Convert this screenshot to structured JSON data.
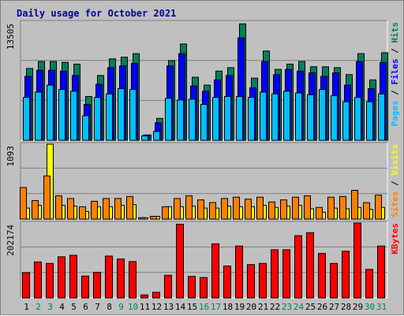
{
  "chart_data": {
    "type": "bar",
    "title": "Daily usage for October 2021",
    "colors": {
      "title": "#0000a0",
      "hits": "#00805c",
      "files": "#0000ff",
      "pages": "#00c0ff",
      "visits": "#ffff00",
      "sites": "#ff8000",
      "kbytes": "#ff0000",
      "background": "#c0c0c0",
      "weekday_label": "#000000",
      "weekend_label": "#00805c"
    },
    "x": [
      "1",
      "2",
      "3",
      "4",
      "5",
      "6",
      "7",
      "8",
      "9",
      "10",
      "11",
      "12",
      "13",
      "14",
      "15",
      "16",
      "17",
      "18",
      "19",
      "20",
      "21",
      "22",
      "23",
      "24",
      "25",
      "26",
      "27",
      "28",
      "29",
      "30",
      "31"
    ],
    "weekend_days": [
      "2",
      "3",
      "9",
      "10",
      "16",
      "17",
      "23",
      "24",
      "30",
      "31"
    ],
    "panels": [
      {
        "id": "hits-files-pages",
        "ymax_label": "13505",
        "ymax": 13505,
        "legend": [
          {
            "text": "Pages",
            "color_key": "pages"
          },
          {
            "text": " / ",
            "color_key": "weekday_label"
          },
          {
            "text": "Files",
            "color_key": "files"
          },
          {
            "text": " / ",
            "color_key": "weekday_label"
          },
          {
            "text": "Hits",
            "color_key": "hits"
          }
        ],
        "series": [
          {
            "name": "Hits",
            "color_key": "hits",
            "values": [
              8200,
              9000,
              9000,
              8900,
              8700,
              5000,
              7400,
              9300,
              9500,
              9900,
              600,
              2500,
              9100,
              11000,
              7200,
              6300,
              7900,
              8300,
              13300,
              7100,
              10200,
              8100,
              8700,
              9000,
              8400,
              8400,
              8300,
              7500,
              9900,
              6900,
              10000
            ]
          },
          {
            "name": "Files",
            "color_key": "files",
            "values": [
              7300,
              8000,
              8000,
              7900,
              7400,
              4100,
              6400,
              8300,
              8500,
              8800,
              600,
              2000,
              8500,
              9900,
              6200,
              5600,
              6900,
              7400,
              11700,
              6000,
              9000,
              7500,
              8100,
              7900,
              7700,
              7300,
              7700,
              6300,
              9000,
              5900,
              8900
            ]
          },
          {
            "name": "Pages",
            "color_key": "pages",
            "values": [
              4900,
              5500,
              6300,
              5800,
              5600,
              2800,
              4900,
              5300,
              5900,
              5800,
              500,
              1000,
              4800,
              4600,
              4700,
              4100,
              4900,
              5000,
              5000,
              4900,
              5500,
              5300,
              5600,
              5400,
              5200,
              5800,
              5100,
              4400,
              4900,
              4400,
              5300
            ]
          }
        ]
      },
      {
        "id": "sites-visits",
        "ymax_label": "1093",
        "ymax": 1093,
        "legend": [
          {
            "text": "Sites",
            "color_key": "sites"
          },
          {
            "text": " / ",
            "color_key": "weekday_label"
          },
          {
            "text": "Visits",
            "color_key": "visits"
          }
        ],
        "series": [
          {
            "name": "Visits",
            "color_key": "visits",
            "values": [
              160,
              200,
              1093,
              200,
              190,
              110,
              180,
              180,
              200,
              210,
              20,
              40,
              180,
              180,
              190,
              160,
              160,
              190,
              180,
              180,
              200,
              170,
              190,
              200,
              150,
              100,
              160,
              150,
              170,
              140,
              170
            ]
          },
          {
            "name": "Sites",
            "color_key": "sites",
            "values": [
              460,
              270,
              630,
              340,
              300,
              180,
              260,
              300,
              300,
              330,
              20,
              40,
              180,
              300,
              340,
              280,
              240,
              300,
              320,
              290,
              320,
              250,
              280,
              320,
              340,
              170,
              320,
              330,
              420,
              240,
              350
            ]
          }
        ]
      },
      {
        "id": "kbytes",
        "ymax_label": "202174",
        "ymax": 202174,
        "legend": [
          {
            "text": "KBytes",
            "color_key": "kbytes"
          }
        ],
        "series": [
          {
            "name": "KBytes",
            "color_key": "kbytes",
            "values": [
              68000,
              97000,
              93000,
              111000,
              115000,
              59000,
              69000,
              113000,
              105000,
              98000,
              8000,
              15000,
              61000,
              199000,
              58000,
              55000,
              146000,
              86000,
              140000,
              90000,
              93000,
              130000,
              130000,
              168000,
              176000,
              120000,
              93000,
              126000,
              202174,
              77000,
              140000
            ]
          }
        ]
      }
    ]
  }
}
